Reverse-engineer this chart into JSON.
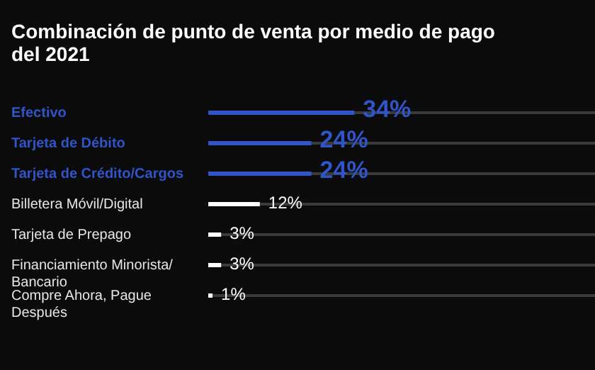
{
  "chart_data": {
    "type": "bar",
    "orientation": "horizontal",
    "title": "Combinación de punto de venta por medio de pago del 2021",
    "categories": [
      "Efectivo",
      "Tarjeta de Débito",
      "Tarjeta de Crédito/Cargos",
      "Billetera Móvil/Digital",
      "Tarjeta de Prepago",
      "Financiamiento Minorista/\nBancario",
      "Compre Ahora, Pague\nDespués"
    ],
    "values": [
      34,
      24,
      24,
      12,
      3,
      3,
      1
    ],
    "value_labels": [
      "34%",
      "24%",
      "24%",
      "12%",
      "3%",
      "3%",
      "1%"
    ],
    "colors": [
      "#2f55c8",
      "#2f55c8",
      "#2f55c8",
      "#ffffff",
      "#ffffff",
      "#ffffff",
      "#ffffff"
    ],
    "xlim": [
      0,
      90
    ],
    "grid": "y"
  }
}
